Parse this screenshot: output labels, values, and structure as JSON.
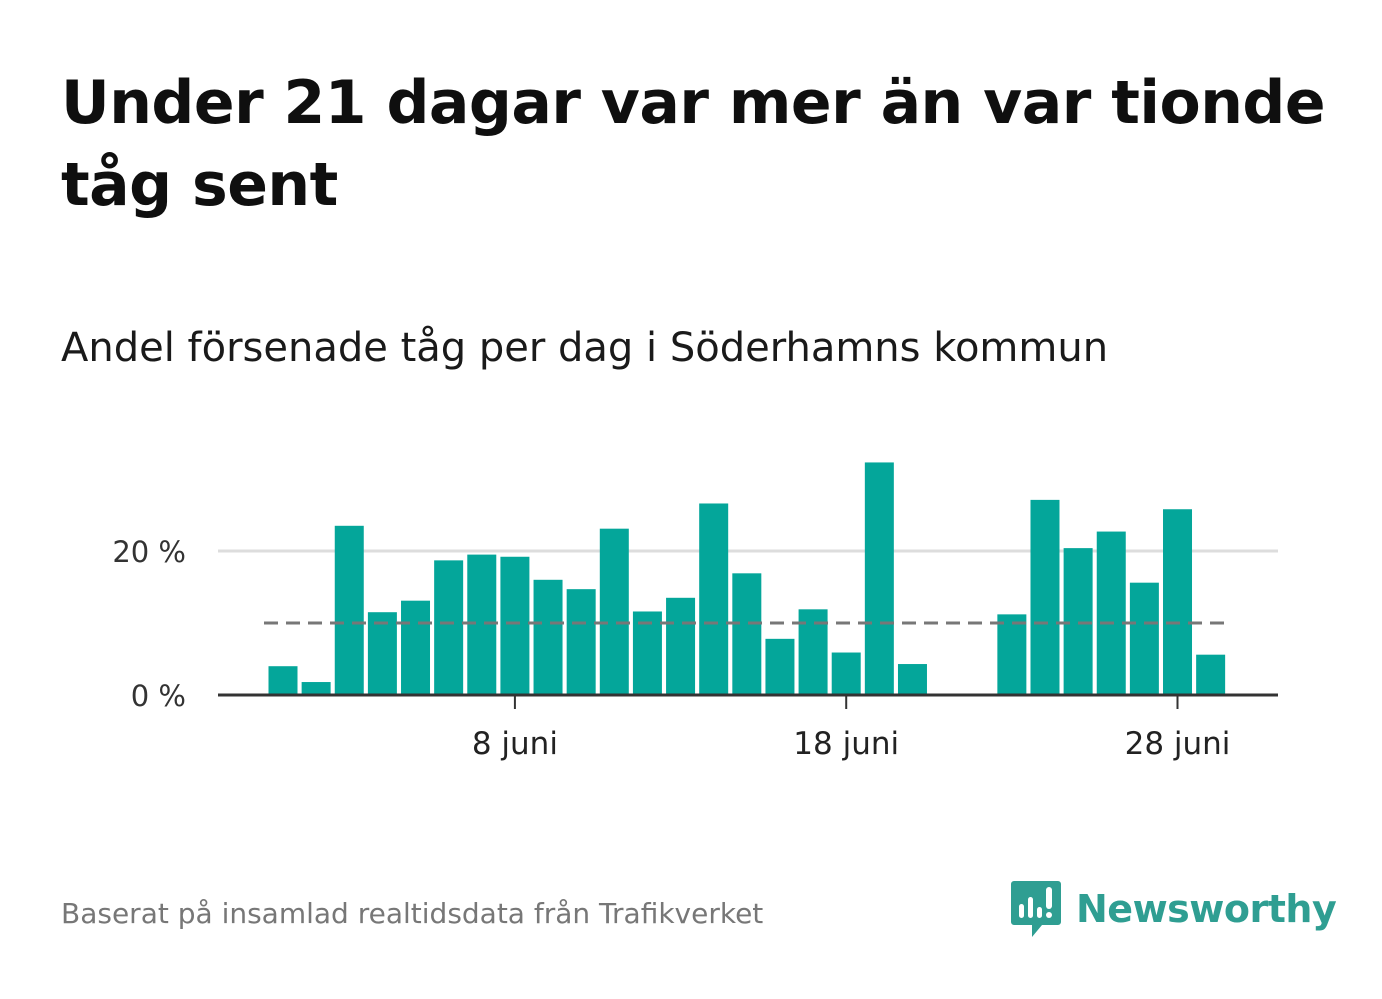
{
  "title": "Under 21 dagar var mer än var tionde tåg sent",
  "subtitle": "Andel försenade tåg per dag i Söderhamns kommun",
  "source": "Baserat på insamlad realtidsdata från Trafikverket",
  "brand": {
    "name": "Newsworthy",
    "color": "#2f9e92"
  },
  "colors": {
    "bar": "#04a69a",
    "reference_line": "#777777",
    "grid": "#dddddd",
    "axis": "#333333"
  },
  "chart_data": {
    "type": "bar",
    "title": "Under 21 dagar var mer än var tionde tåg sent",
    "subtitle": "Andel försenade tåg per dag i Söderhamns kommun",
    "x_unit": "day of June",
    "x": [
      1,
      2,
      3,
      4,
      5,
      6,
      7,
      8,
      9,
      10,
      11,
      12,
      13,
      14,
      15,
      16,
      17,
      18,
      19,
      20,
      21,
      22,
      23,
      24,
      25,
      26,
      27,
      28,
      29,
      30
    ],
    "values": [
      4.0,
      1.8,
      23.5,
      11.5,
      13.1,
      18.7,
      19.5,
      19.2,
      16.0,
      14.7,
      23.1,
      11.6,
      13.5,
      26.6,
      16.9,
      7.8,
      11.9,
      5.9,
      32.3,
      4.3,
      null,
      null,
      11.2,
      27.1,
      20.4,
      22.7,
      15.6,
      25.8,
      5.6,
      null
    ],
    "reference_line": 10,
    "ylim": [
      0,
      35
    ],
    "yticks": [
      {
        "value": 0,
        "label": "0 %"
      },
      {
        "value": 20,
        "label": "20 %"
      }
    ],
    "xticks": [
      {
        "value": 8,
        "label": "8 juni"
      },
      {
        "value": 18,
        "label": "18 juni"
      },
      {
        "value": 28,
        "label": "28 juni"
      }
    ],
    "grid": true,
    "legend": "none"
  }
}
